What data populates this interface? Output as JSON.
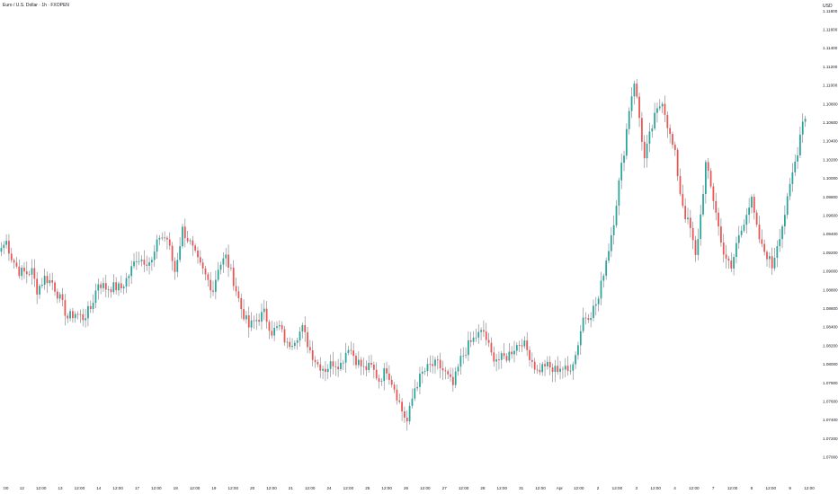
{
  "title": "Euro / U.S. Dollar · 1h · FXOPEN",
  "currency": "USD",
  "colors": {
    "up": "#26a69a",
    "down": "#ef5350",
    "wick": "#787b86",
    "axis_text": "#131722",
    "background": "#ffffff"
  },
  "chart_data": {
    "type": "candlestick",
    "ylim": [
      1.07,
      1.1185
    ],
    "y_ticks": [
      "1.07000",
      "1.07200",
      "1.07400",
      "1.07600",
      "1.07800",
      "1.08000",
      "1.08200",
      "1.08400",
      "1.08600",
      "1.08800",
      "1.09000",
      "1.09200",
      "1.09400",
      "1.09600",
      "1.09800",
      "1.10000",
      "1.10200",
      "1.10400",
      "1.10600",
      "1.10800",
      "1.11000",
      "1.11200",
      "1.11400",
      "1.11600",
      "1.11800"
    ],
    "x_ticks": [
      ":00",
      "12",
      "12:00",
      "13",
      "12:00",
      "14",
      "12:00",
      "17",
      "12:00",
      "18",
      "12:00",
      "19",
      "12:00",
      "20",
      "12:00",
      "21",
      "12:00",
      "24",
      "12:00",
      "25",
      "12:00",
      "26",
      "12:00",
      "27",
      "12:00",
      "28",
      "12:00",
      "31",
      "12:00",
      "Apr",
      "12:00",
      "2",
      "12:00",
      "3",
      "12:00",
      "4",
      "12:00",
      "7",
      "12:00",
      "8",
      "12:00",
      "9",
      "12:00"
    ],
    "anchors": [
      [
        0,
        1.0925
      ],
      [
        2,
        1.0932
      ],
      [
        4,
        1.0915
      ],
      [
        7,
        1.09
      ],
      [
        10,
        1.0898
      ],
      [
        12,
        1.09
      ],
      [
        14,
        1.088
      ],
      [
        17,
        1.0893
      ],
      [
        20,
        1.0888
      ],
      [
        23,
        1.087
      ],
      [
        26,
        1.085
      ],
      [
        29,
        1.0855
      ],
      [
        32,
        1.085
      ],
      [
        35,
        1.086
      ],
      [
        38,
        1.0888
      ],
      [
        41,
        1.0882
      ],
      [
        44,
        1.0883
      ],
      [
        47,
        1.0882
      ],
      [
        50,
        1.0896
      ],
      [
        53,
        1.0915
      ],
      [
        56,
        1.0912
      ],
      [
        59,
        1.091
      ],
      [
        62,
        1.0938
      ],
      [
        65,
        1.0935
      ],
      [
        68,
        1.09
      ],
      [
        71,
        1.0945
      ],
      [
        74,
        1.093
      ],
      [
        77,
        1.091
      ],
      [
        80,
        1.0895
      ],
      [
        83,
        1.088
      ],
      [
        85,
        1.0905
      ],
      [
        88,
        1.0915
      ],
      [
        91,
        1.089
      ],
      [
        94,
        1.086
      ],
      [
        97,
        1.084
      ],
      [
        100,
        1.0848
      ],
      [
        103,
        1.0855
      ],
      [
        106,
        1.0835
      ],
      [
        109,
        1.084
      ],
      [
        112,
        1.082
      ],
      [
        115,
        1.0828
      ],
      [
        118,
        1.0838
      ],
      [
        121,
        1.0815
      ],
      [
        124,
        1.08
      ],
      [
        127,
        1.0795
      ],
      [
        130,
        1.0802
      ],
      [
        133,
        1.08
      ],
      [
        136,
        1.082
      ],
      [
        139,
        1.0805
      ],
      [
        142,
        1.0795
      ],
      [
        145,
        1.0797
      ],
      [
        148,
        1.0783
      ],
      [
        151,
        1.0795
      ],
      [
        154,
        1.0775
      ],
      [
        157,
        1.075
      ],
      [
        159,
        1.0738
      ],
      [
        162,
        1.0775
      ],
      [
        165,
        1.079
      ],
      [
        168,
        1.0798
      ],
      [
        171,
        1.08
      ],
      [
        174,
        1.079
      ],
      [
        177,
        1.0777
      ],
      [
        180,
        1.0805
      ],
      [
        183,
        1.082
      ],
      [
        186,
        1.083
      ],
      [
        189,
        1.0835
      ],
      [
        192,
        1.081
      ],
      [
        195,
        1.0805
      ],
      [
        198,
        1.0808
      ],
      [
        201,
        1.0818
      ],
      [
        204,
        1.0825
      ],
      [
        207,
        1.081
      ],
      [
        210,
        1.0792
      ],
      [
        213,
        1.08
      ],
      [
        216,
        1.0793
      ],
      [
        219,
        1.0797
      ],
      [
        222,
        1.0792
      ],
      [
        225,
        1.081
      ],
      [
        228,
        1.085
      ],
      [
        231,
        1.0855
      ],
      [
        234,
        1.087
      ],
      [
        236,
        1.09
      ],
      [
        238,
        1.0925
      ],
      [
        240,
        1.0955
      ],
      [
        242,
        1.0995
      ],
      [
        244,
        1.103
      ],
      [
        246,
        1.1075
      ],
      [
        248,
        1.1105
      ],
      [
        250,
        1.1065
      ],
      [
        252,
        1.102
      ],
      [
        254,
        1.1045
      ],
      [
        256,
        1.1065
      ],
      [
        259,
        1.1085
      ],
      [
        262,
        1.1045
      ],
      [
        264,
        1.1025
      ],
      [
        266,
        1.0985
      ],
      [
        268,
        1.096
      ],
      [
        270,
        1.0945
      ],
      [
        272,
        1.0915
      ],
      [
        274,
        1.096
      ],
      [
        276,
        1.1015
      ],
      [
        278,
        1.099
      ],
      [
        280,
        1.0965
      ],
      [
        282,
        1.093
      ],
      [
        284,
        1.0915
      ],
      [
        286,
        1.09
      ],
      [
        288,
        1.093
      ],
      [
        290,
        1.0945
      ],
      [
        292,
        1.0965
      ],
      [
        294,
        1.0975
      ],
      [
        296,
        1.0945
      ],
      [
        298,
        1.0925
      ],
      [
        300,
        1.0918
      ],
      [
        302,
        1.0905
      ],
      [
        304,
        1.093
      ],
      [
        306,
        1.095
      ],
      [
        308,
        1.0975
      ],
      [
        310,
        1.1005
      ],
      [
        312,
        1.103
      ],
      [
        314,
        1.1065
      ],
      [
        315,
        1.1064
      ]
    ]
  }
}
